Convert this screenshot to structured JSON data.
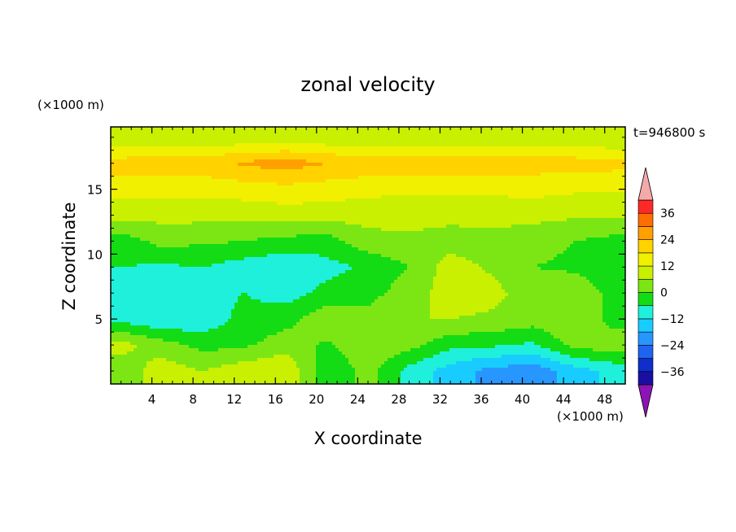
{
  "chart_data": {
    "type": "heatmap",
    "title": "zonal velocity",
    "xlabel": "X coordinate",
    "ylabel": "Z coordinate",
    "x_unit": "(×1000 m)",
    "y_unit": "(×1000 m)",
    "time_label": "t=946800 s",
    "xlim": [
      0,
      50
    ],
    "ylim": [
      0,
      19.8
    ],
    "x_ticks": [
      4,
      8,
      12,
      16,
      20,
      24,
      28,
      32,
      36,
      40,
      44,
      48
    ],
    "y_ticks": [
      5,
      10,
      15
    ],
    "colorbar": {
      "levels": [
        -42,
        -36,
        -30,
        -24,
        -18,
        -12,
        -6,
        0,
        6,
        12,
        18,
        24,
        30,
        36,
        42
      ],
      "labels": [
        -36,
        -24,
        -12,
        0,
        12,
        24,
        36
      ],
      "colors": [
        "#55008c",
        "#1a0fa0",
        "#0f2ecc",
        "#1e64f0",
        "#2896ff",
        "#19ccff",
        "#1ef0dc",
        "#14dc14",
        "#7ce614",
        "#c8f000",
        "#f0f000",
        "#ffd200",
        "#ffa000",
        "#ff6e00",
        "#ff2828",
        "#ff1414"
      ],
      "under_color": "#8c14b4",
      "over_color": "#f5aaaa"
    },
    "x": [
      1,
      5,
      9,
      13,
      17,
      21,
      25,
      29,
      33,
      37,
      41,
      45,
      49
    ],
    "z": [
      1,
      3,
      5,
      7,
      9,
      11,
      13,
      15,
      17,
      19
    ],
    "values": [
      [
        2,
        9,
        6,
        10,
        12,
        -5,
        2,
        -8,
        -15,
        -20,
        -22,
        -15,
        -10
      ],
      [
        8,
        3,
        -2,
        -1,
        3,
        -1,
        5,
        2,
        -4,
        -5,
        -7,
        2,
        4
      ],
      [
        -8,
        -12,
        -10,
        -4,
        -2,
        4,
        2,
        6,
        6,
        5,
        3,
        6,
        -3
      ],
      [
        -9,
        -11,
        -8,
        -6,
        -9,
        -4,
        -2,
        3,
        9,
        8,
        3,
        4,
        -2
      ],
      [
        -6,
        -7,
        -6,
        -9,
        -11,
        -8,
        -5,
        0,
        9,
        5,
        0,
        -1,
        -4
      ],
      [
        -3,
        2,
        1,
        0,
        -2,
        -3,
        4,
        5,
        3,
        3,
        2,
        0,
        -2
      ],
      [
        8,
        8,
        8,
        8,
        9,
        9,
        8,
        8,
        8,
        9,
        8,
        7,
        7
      ],
      [
        14,
        14,
        14,
        15,
        16,
        15,
        14,
        13,
        13,
        13,
        14,
        13,
        13
      ],
      [
        21,
        22,
        22,
        25,
        27,
        24,
        22,
        22,
        23,
        22,
        21,
        21,
        20
      ],
      [
        6,
        7,
        7,
        7,
        8,
        7,
        7,
        7,
        7,
        7,
        7,
        7,
        6
      ]
    ]
  }
}
